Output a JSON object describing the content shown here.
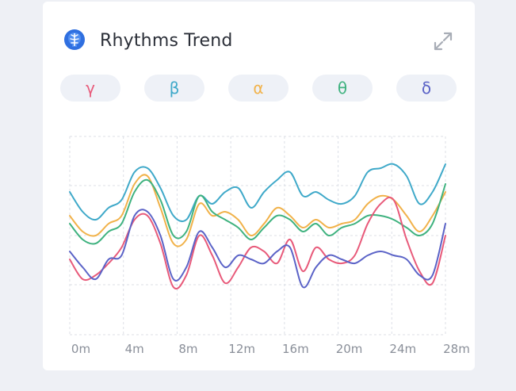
{
  "card": {
    "title": "Rhythms Trend",
    "icon": "brain-icon",
    "expand_icon": "expand-icon"
  },
  "bands": [
    {
      "key": "gamma",
      "label": "γ",
      "color": "#e85a7a"
    },
    {
      "key": "beta",
      "label": "β",
      "color": "#3fa9c9"
    },
    {
      "key": "alpha",
      "label": "α",
      "color": "#f1b24a"
    },
    {
      "key": "theta",
      "label": "θ",
      "color": "#3fb27f"
    },
    {
      "key": "delta",
      "label": "δ",
      "color": "#5b63c7"
    }
  ],
  "chart_data": {
    "type": "line",
    "title": "",
    "xlabel": "",
    "ylabel": "",
    "x_unit": "minutes",
    "x_ticks": [
      "0m",
      "4m",
      "8m",
      "12m",
      "16m",
      "20m",
      "24m",
      "28m"
    ],
    "x": [
      0,
      1,
      2,
      3,
      4,
      5,
      6,
      7,
      8,
      9,
      10,
      11,
      12,
      13,
      14,
      15,
      16,
      17,
      18,
      19,
      20,
      21,
      22,
      23,
      24,
      25,
      26,
      27,
      28,
      29
    ],
    "xlim": [
      0,
      29
    ],
    "ylim": [
      0,
      100
    ],
    "grid": true,
    "legend": "none",
    "series": [
      {
        "key": "beta",
        "color": "#3fa9c9",
        "values": [
          72,
          62,
          58,
          64,
          68,
          82,
          84,
          74,
          60,
          58,
          70,
          66,
          72,
          74,
          64,
          72,
          78,
          82,
          70,
          72,
          68,
          66,
          70,
          82,
          84,
          86,
          80,
          66,
          72,
          86
        ]
      },
      {
        "key": "alpha",
        "color": "#f1b24a",
        "values": [
          60,
          52,
          50,
          56,
          60,
          76,
          80,
          64,
          46,
          48,
          66,
          60,
          62,
          58,
          50,
          56,
          64,
          60,
          54,
          58,
          54,
          56,
          58,
          66,
          70,
          68,
          60,
          52,
          60,
          72
        ]
      },
      {
        "key": "theta",
        "color": "#3fb27f",
        "values": [
          56,
          48,
          46,
          52,
          56,
          72,
          78,
          68,
          50,
          52,
          70,
          62,
          58,
          54,
          48,
          54,
          60,
          58,
          52,
          56,
          50,
          54,
          56,
          60,
          60,
          58,
          54,
          50,
          56,
          76
        ]
      },
      {
        "key": "gamma",
        "color": "#e85a7a",
        "values": [
          38,
          28,
          30,
          36,
          44,
          58,
          60,
          46,
          24,
          30,
          50,
          40,
          26,
          34,
          44,
          42,
          36,
          48,
          32,
          44,
          38,
          36,
          40,
          56,
          66,
          68,
          48,
          32,
          26,
          50
        ]
      },
      {
        "key": "delta",
        "color": "#5b63c7",
        "values": [
          42,
          34,
          28,
          38,
          40,
          60,
          62,
          50,
          28,
          34,
          52,
          44,
          34,
          40,
          38,
          36,
          42,
          44,
          24,
          34,
          40,
          38,
          36,
          40,
          42,
          40,
          38,
          30,
          30,
          56
        ]
      }
    ]
  }
}
